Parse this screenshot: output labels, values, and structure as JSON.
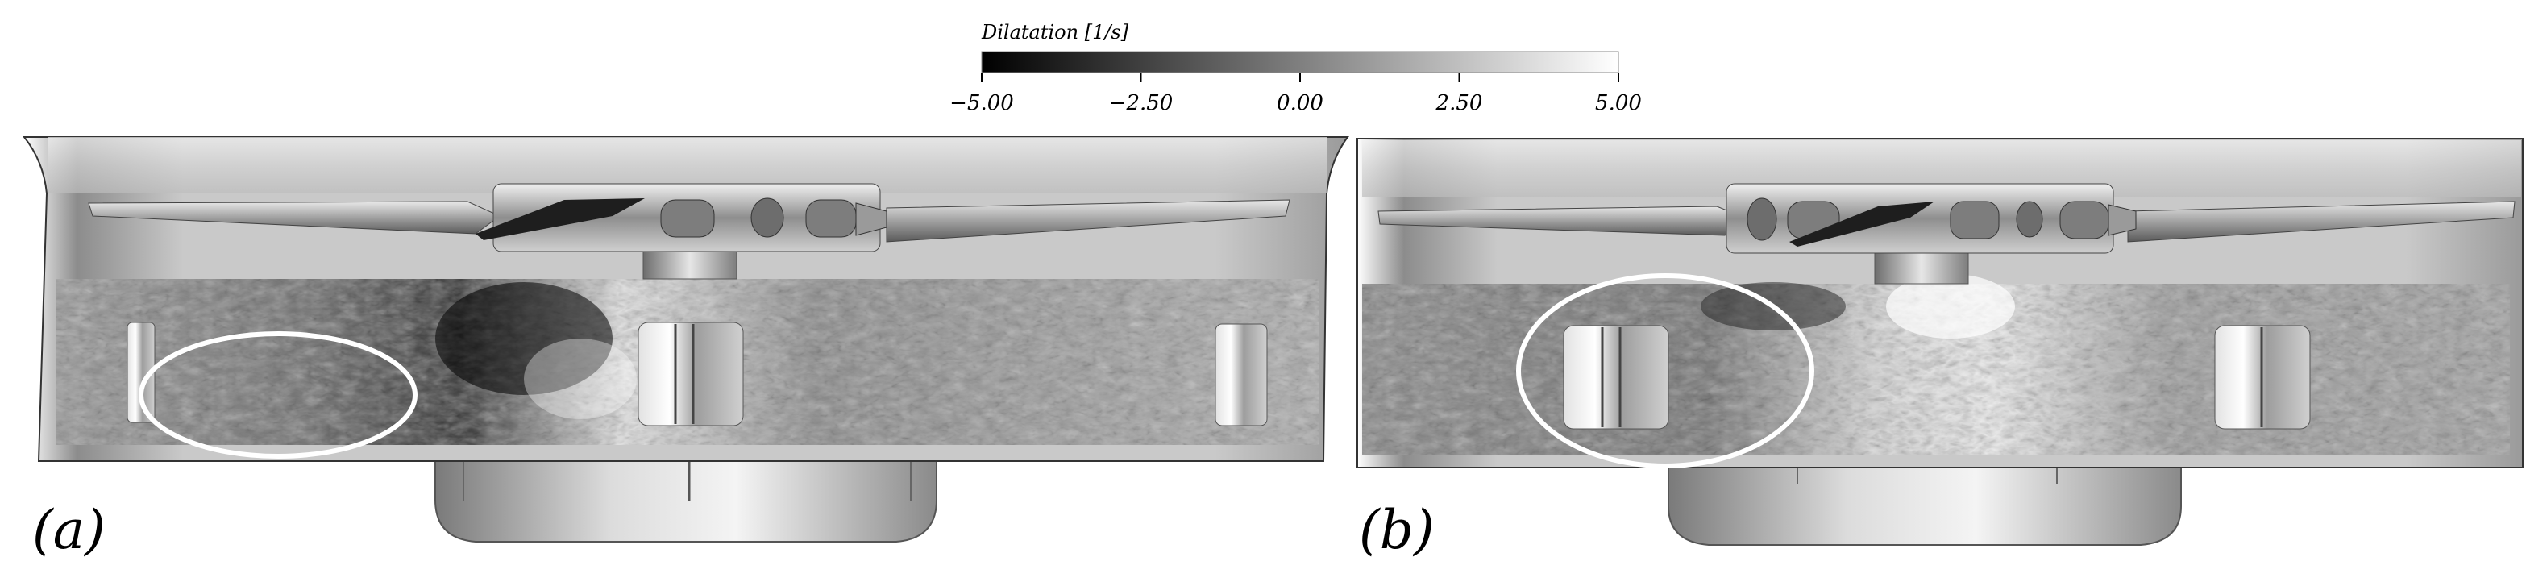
{
  "colorbar": {
    "title": "Dilatation [1/s]",
    "min": -5.0,
    "max": 5.0,
    "ticks": [
      {
        "value": -5.0,
        "label": "−5.00"
      },
      {
        "value": -2.5,
        "label": "−2.50"
      },
      {
        "value": 0.0,
        "label": "0.00"
      },
      {
        "value": 2.5,
        "label": "2.50"
      },
      {
        "value": 5.0,
        "label": "5.00"
      }
    ],
    "colormap": "grayscale",
    "color_low": "#000000",
    "color_high": "#ffffff"
  },
  "panels": [
    {
      "id": "a",
      "label": "(a)"
    },
    {
      "id": "b",
      "label": "(b)"
    }
  ],
  "colors": {
    "hull": "#c8c8c8",
    "hull_shadow": "#8a8a8a",
    "highlight_ellipse": "#ffffff",
    "background": "#ffffff"
  }
}
